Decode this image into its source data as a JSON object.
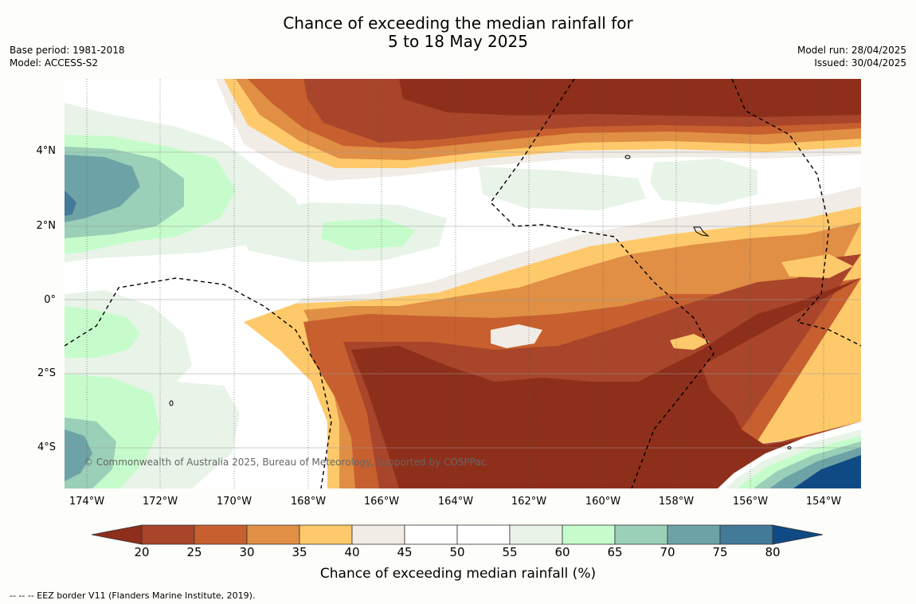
{
  "title": {
    "line1": "Chance of exceeding the median rainfall for",
    "line2": "5 to 18 May 2025"
  },
  "meta": {
    "base_period": "Base period: 1981-2018",
    "model": "Model: ACCESS-S2",
    "model_run": "Model run: 28/04/2025",
    "issued": "Issued: 30/04/2025"
  },
  "map": {
    "y_labels": [
      "4°N",
      "2°N",
      "0°",
      "2°S",
      "4°S"
    ],
    "x_labels": [
      "174°W",
      "172°W",
      "170°W",
      "168°W",
      "166°W",
      "164°W",
      "162°W",
      "160°W",
      "158°W",
      "156°W",
      "154°W"
    ],
    "credit": "© Commonwealth of Australia 2025, Bureau of Meteorology, supported by COSPPac."
  },
  "legend": {
    "ticks": [
      "20",
      "25",
      "30",
      "35",
      "40",
      "45",
      "50",
      "55",
      "60",
      "65",
      "70",
      "75",
      "80"
    ],
    "colors": [
      "#8e2f1b",
      "#a8452a",
      "#c75f2f",
      "#e08f45",
      "#fec96a",
      "#f1ece6",
      "#ffffff",
      "#ffffff",
      "#e8f4e8",
      "#c6fccb",
      "#9acfb8",
      "#6da3a6",
      "#437a98",
      "#0f4a84"
    ],
    "label": "Chance of exceeding median rainfall (%)"
  },
  "footer": "--  --  -- EEZ border V11 (Flanders Marine Institute, 2019)."
}
